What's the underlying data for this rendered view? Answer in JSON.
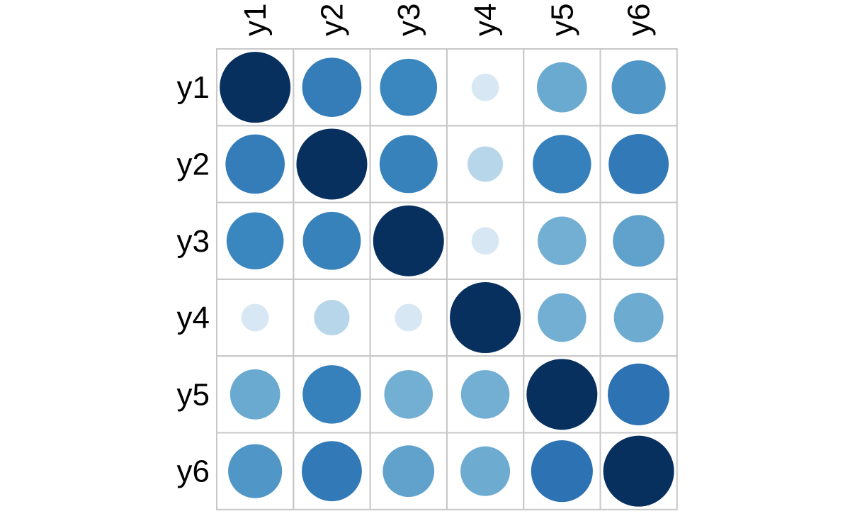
{
  "chart_data": {
    "type": "heatmap",
    "style": "correlation-circles",
    "variables": [
      "y1",
      "y2",
      "y3",
      "y4",
      "y5",
      "y6"
    ],
    "matrix": [
      [
        1.0,
        0.7,
        0.65,
        0.15,
        0.5,
        0.58
      ],
      [
        0.7,
        1.0,
        0.67,
        0.25,
        0.68,
        0.72
      ],
      [
        0.65,
        0.67,
        1.0,
        0.15,
        0.47,
        0.53
      ],
      [
        0.15,
        0.25,
        0.15,
        1.0,
        0.47,
        0.49
      ],
      [
        0.5,
        0.68,
        0.47,
        0.47,
        1.0,
        0.76
      ],
      [
        0.58,
        0.72,
        0.53,
        0.49,
        0.76,
        1.0
      ]
    ],
    "value_range": [
      -1,
      1
    ],
    "colors": {
      "scale": [
        "#ffffff",
        "#d7e7f3",
        "#b8d6ea",
        "#6aa9d0",
        "#3a86be",
        "#2d72b3",
        "#08305f"
      ],
      "grid": "#c8c8c8"
    }
  }
}
